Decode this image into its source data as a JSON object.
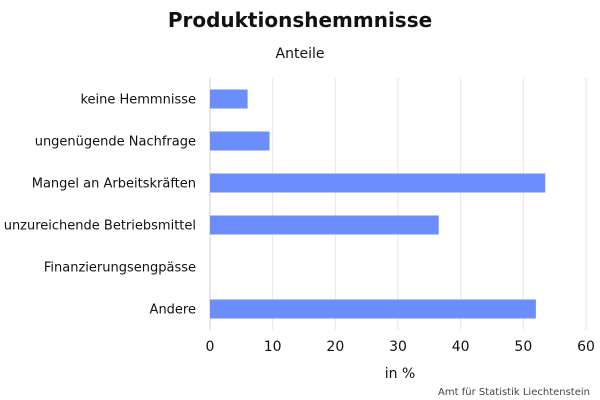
{
  "chart_data": {
    "type": "bar",
    "orientation": "horizontal",
    "title": "Produktionshemmnisse",
    "subtitle": "Anteile",
    "categories": [
      "keine Hemmnisse",
      "ungenügende Nachfrage",
      "Mangel an Arbeitskräften",
      "unzureichende Betriebsmittel",
      "Finanzierungsengpässe",
      "Andere"
    ],
    "values": [
      6,
      9.5,
      53.5,
      36.5,
      0,
      52
    ],
    "xlabel": "in %",
    "ylabel": "",
    "xlim": [
      0,
      60
    ],
    "xticks": [
      "0",
      "10",
      "20",
      "30",
      "40",
      "50",
      "60"
    ],
    "grid": true,
    "legend": "none",
    "bar_color": "#6b8efc"
  },
  "credit": "Amt für Statistik Liechtenstein"
}
